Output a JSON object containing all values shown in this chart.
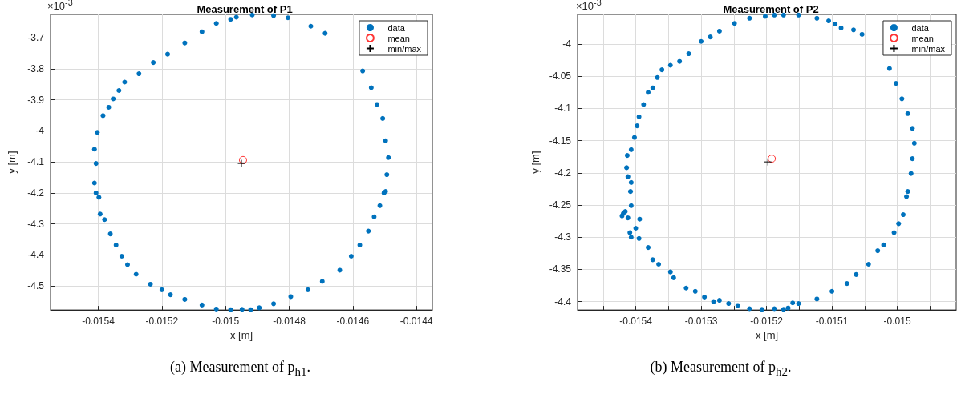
{
  "chart_data": [
    {
      "type": "scatter",
      "title": "Measurement of P1",
      "xlabel": "x [m]",
      "ylabel": "y [m]",
      "annotations": [
        "×10$^{-3}$",
        "(a) Measurement of p$_{h1}$."
      ],
      "xlim": [
        -0.01555,
        -0.01435
      ],
      "ylim": [
        -4.577,
        -3.625
      ],
      "xticks": [
        -0.0154,
        -0.0152,
        -0.015,
        -0.0148,
        -0.0146,
        -0.0144
      ],
      "yticks": [
        -4.5,
        -4.4,
        -4.3,
        -4.2,
        -4.1,
        -4,
        -3.9,
        -3.8,
        -3.7
      ],
      "grid": true,
      "legend": "top right",
      "series": [
        {
          "name": "data",
          "color": "#0072bd",
          "marker": "circle",
          "x": [
            -0.014916,
            -0.014849,
            -0.014804,
            -0.014732,
            -0.014687,
            -0.014569,
            -0.014542,
            -0.014524,
            -0.014506,
            -0.014497,
            -0.014488,
            -0.014493,
            -0.014497,
            -0.014502,
            -0.014515,
            -0.014533,
            -0.014551,
            -0.014578,
            -0.014605,
            -0.014641,
            -0.014696,
            -0.014741,
            -0.014795,
            -0.014849,
            -0.014894,
            -0.014921,
            -0.014948,
            -0.014984,
            -0.015029,
            -0.015074,
            -0.015128,
            -0.015173,
            -0.0152,
            -0.015236,
            -0.015281,
            -0.015308,
            -0.015326,
            -0.015344,
            -0.015362,
            -0.01538,
            -0.015394,
            -0.015398,
            -0.015407,
            -0.015412,
            -0.015407,
            -0.015412,
            -0.015403,
            -0.015385,
            -0.015367,
            -0.015353,
            -0.015335,
            -0.015317,
            -0.015272,
            -0.015227,
            -0.015182,
            -0.015128,
            -0.015074,
            -0.015029,
            -0.014984,
            -0.014966
          ],
          "values": [
            -3.627,
            -3.629,
            -3.636,
            -3.663,
            -3.686,
            -3.807,
            -3.861,
            -3.915,
            -3.96,
            -4.032,
            -4.086,
            -4.141,
            -4.195,
            -4.2,
            -4.241,
            -4.277,
            -4.323,
            -4.368,
            -4.404,
            -4.449,
            -4.485,
            -4.512,
            -4.534,
            -4.557,
            -4.57,
            -4.576,
            -4.575,
            -4.576,
            -4.574,
            -4.561,
            -4.543,
            -4.528,
            -4.512,
            -4.494,
            -4.462,
            -4.431,
            -4.404,
            -4.368,
            -4.332,
            -4.286,
            -4.268,
            -4.214,
            -4.2,
            -4.168,
            -4.105,
            -4.059,
            -4.005,
            -3.951,
            -3.924,
            -3.897,
            -3.87,
            -3.843,
            -3.816,
            -3.78,
            -3.753,
            -3.717,
            -3.681,
            -3.654,
            -3.641,
            -3.634
          ]
        },
        {
          "name": "mean",
          "color": "#ff0000",
          "marker": "circle",
          "x": [
            -0.014945
          ],
          "values": [
            -4.094
          ]
        },
        {
          "name": "min/max",
          "color": "#000000",
          "marker": "cross",
          "x": [
            -0.01495
          ],
          "values": [
            -4.105
          ]
        }
      ]
    },
    {
      "type": "scatter",
      "title": "Measurement of P2",
      "xlabel": "x [m]",
      "ylabel": "y [m]",
      "annotations": [
        "×10$^{-3}$",
        "(b) Measurement of p$_{h2}$."
      ],
      "xlim": [
        -0.015489,
        -0.01491
      ],
      "ylim": [
        -4.413,
        -3.954
      ],
      "xticks": [
        {
          "value": -0.01545,
          "label": null
        },
        -0.0154,
        {
          "value": -0.01535,
          "label": null
        },
        -0.0153,
        {
          "value": -0.01525,
          "label": null
        },
        -0.0152,
        {
          "value": -0.01515,
          "label": null
        },
        -0.0151,
        {
          "value": -0.01505,
          "label": null
        },
        -0.015,
        {
          "value": -0.01495,
          "label": null
        }
      ],
      "yticks": [
        -4.4,
        -4.35,
        -4.3,
        -4.25,
        -4.2,
        -4.15,
        -4.1,
        -4.05,
        -4
      ],
      "grid": true,
      "legend": "top right",
      "series": [
        {
          "name": "data",
          "color": "#0072bd",
          "marker": "circle",
          "x": [
            -0.015174,
            -0.015151,
            -0.015123,
            -0.015105,
            -0.015095,
            -0.015086,
            -0.015067,
            -0.015054,
            -0.015012,
            -0.015002,
            -0.014993,
            -0.014984,
            -0.014977,
            -0.014974,
            -0.014977,
            -0.014979,
            -0.014984,
            -0.014986,
            -0.014991,
            -0.014998,
            -0.015005,
            -0.015021,
            -0.01503,
            -0.015044,
            -0.015063,
            -0.015077,
            -0.0151,
            -0.015123,
            -0.015151,
            -0.01516,
            -0.015167,
            -0.015174,
            -0.015188,
            -0.015207,
            -0.015226,
            -0.015244,
            -0.015258,
            -0.015272,
            -0.015281,
            -0.015295,
            -0.015309,
            -0.015323,
            -0.015342,
            -0.015347,
            -0.015365,
            -0.015374,
            -0.015381,
            -0.015395,
            -0.015407,
            -0.0154,
            -0.015394,
            -0.015409,
            -0.015412,
            -0.015419,
            -0.015421,
            -0.015416,
            -0.015407,
            -0.015408,
            -0.015407,
            -0.015412,
            -0.015414,
            -0.015413,
            -0.015407,
            -0.015402,
            -0.015398,
            -0.015395,
            -0.015388,
            -0.015381,
            -0.015374,
            -0.015367,
            -0.01536,
            -0.015347,
            -0.015333,
            -0.015319,
            -0.0153,
            -0.015286,
            -0.015272,
            -0.015249,
            -0.015226,
            -0.015202,
            -0.015188
          ],
          "values": [
            -3.955,
            -3.955,
            -3.96,
            -3.964,
            -3.969,
            -3.975,
            -3.978,
            -3.985,
            -4.038,
            -4.061,
            -4.085,
            -4.108,
            -4.131,
            -4.154,
            -4.178,
            -4.201,
            -4.229,
            -4.237,
            -4.265,
            -4.279,
            -4.293,
            -4.312,
            -4.321,
            -4.342,
            -4.358,
            -4.372,
            -4.384,
            -4.396,
            -4.403,
            -4.402,
            -4.41,
            -4.412,
            -4.411,
            -4.412,
            -4.411,
            -4.406,
            -4.403,
            -4.398,
            -4.4,
            -4.393,
            -4.384,
            -4.379,
            -4.363,
            -4.354,
            -4.342,
            -4.335,
            -4.316,
            -4.302,
            -4.3,
            -4.286,
            -4.272,
            -4.293,
            -4.27,
            -4.263,
            -4.267,
            -4.26,
            -4.251,
            -4.229,
            -4.215,
            -4.206,
            -4.192,
            -4.173,
            -4.164,
            -4.145,
            -4.127,
            -4.113,
            -4.094,
            -4.075,
            -4.068,
            -4.052,
            -4.04,
            -4.033,
            -4.027,
            -4.015,
            -3.996,
            -3.989,
            -3.98,
            -3.968,
            -3.96,
            -3.957,
            -3.955
          ]
        },
        {
          "name": "mean",
          "color": "#ff0000",
          "marker": "circle",
          "x": [
            -0.015192
          ],
          "values": [
            -4.178
          ]
        },
        {
          "name": "min/max",
          "color": "#000000",
          "marker": "cross",
          "x": [
            -0.015198
          ],
          "values": [
            -4.183
          ]
        }
      ]
    }
  ]
}
